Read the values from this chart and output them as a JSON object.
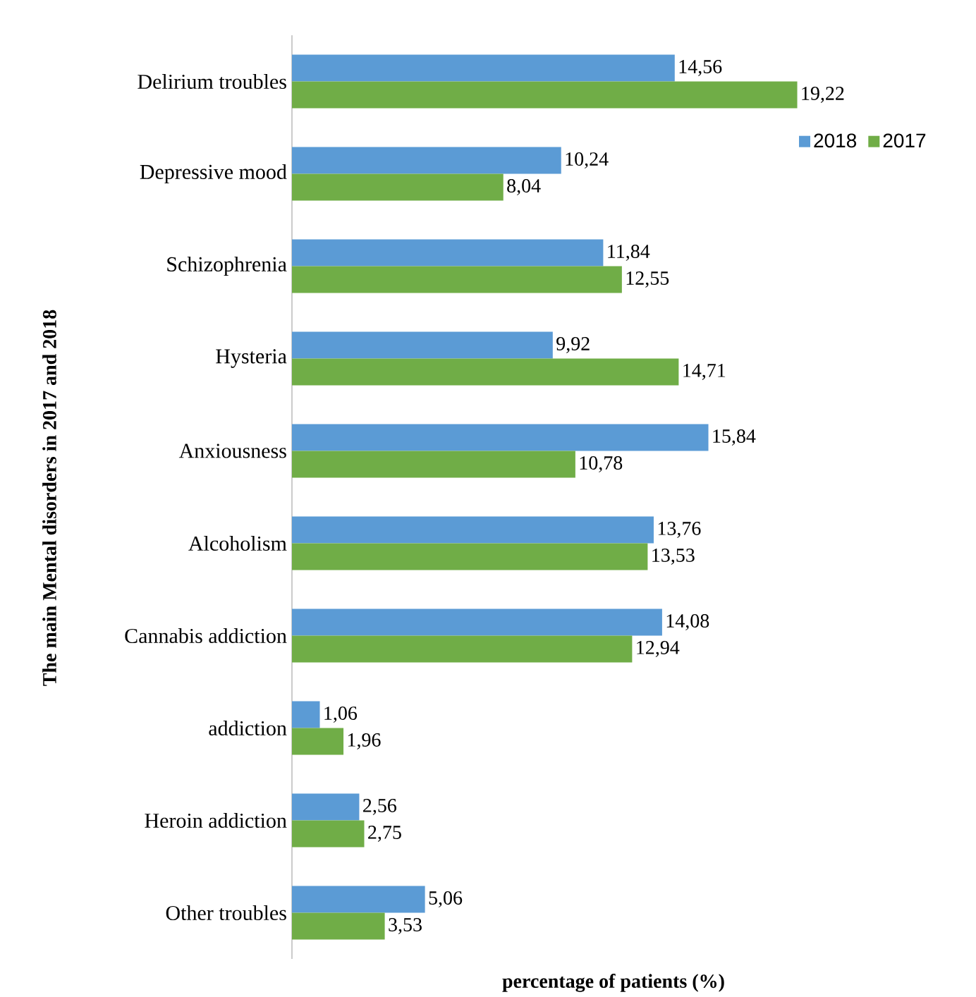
{
  "chart_data": {
    "type": "bar",
    "orientation": "horizontal",
    "ylabel": "The main Mental disorders in 2017 and 2018",
    "xlabel": "percentage of patients (%)",
    "categories": [
      "Delirium troubles",
      "Depressive mood",
      "Schizophrenia",
      "Hysteria",
      "Anxiousness",
      "Alcoholism",
      "Cannabis addiction",
      "addiction",
      "Heroin addiction",
      "Other troubles"
    ],
    "series": [
      {
        "name": "2018",
        "color": "#5b9bd5",
        "values": [
          14.56,
          10.24,
          11.84,
          9.92,
          15.84,
          13.76,
          14.08,
          1.06,
          2.56,
          5.06
        ],
        "value_labels": [
          "14,56",
          "10,24",
          "11,84",
          "9,92",
          "15,84",
          "13,76",
          "14,08",
          "1,06",
          "2,56",
          "5,06"
        ]
      },
      {
        "name": "2017",
        "color": "#70ad47",
        "values": [
          19.22,
          8.04,
          12.55,
          14.71,
          10.78,
          13.53,
          12.94,
          1.96,
          2.75,
          3.53
        ],
        "value_labels": [
          "19,22",
          "8,04",
          "12,55",
          "14,71",
          "10,78",
          "13,53",
          "12,94",
          "1,96",
          "2,75",
          "3,53"
        ]
      }
    ],
    "legend": "top right"
  }
}
